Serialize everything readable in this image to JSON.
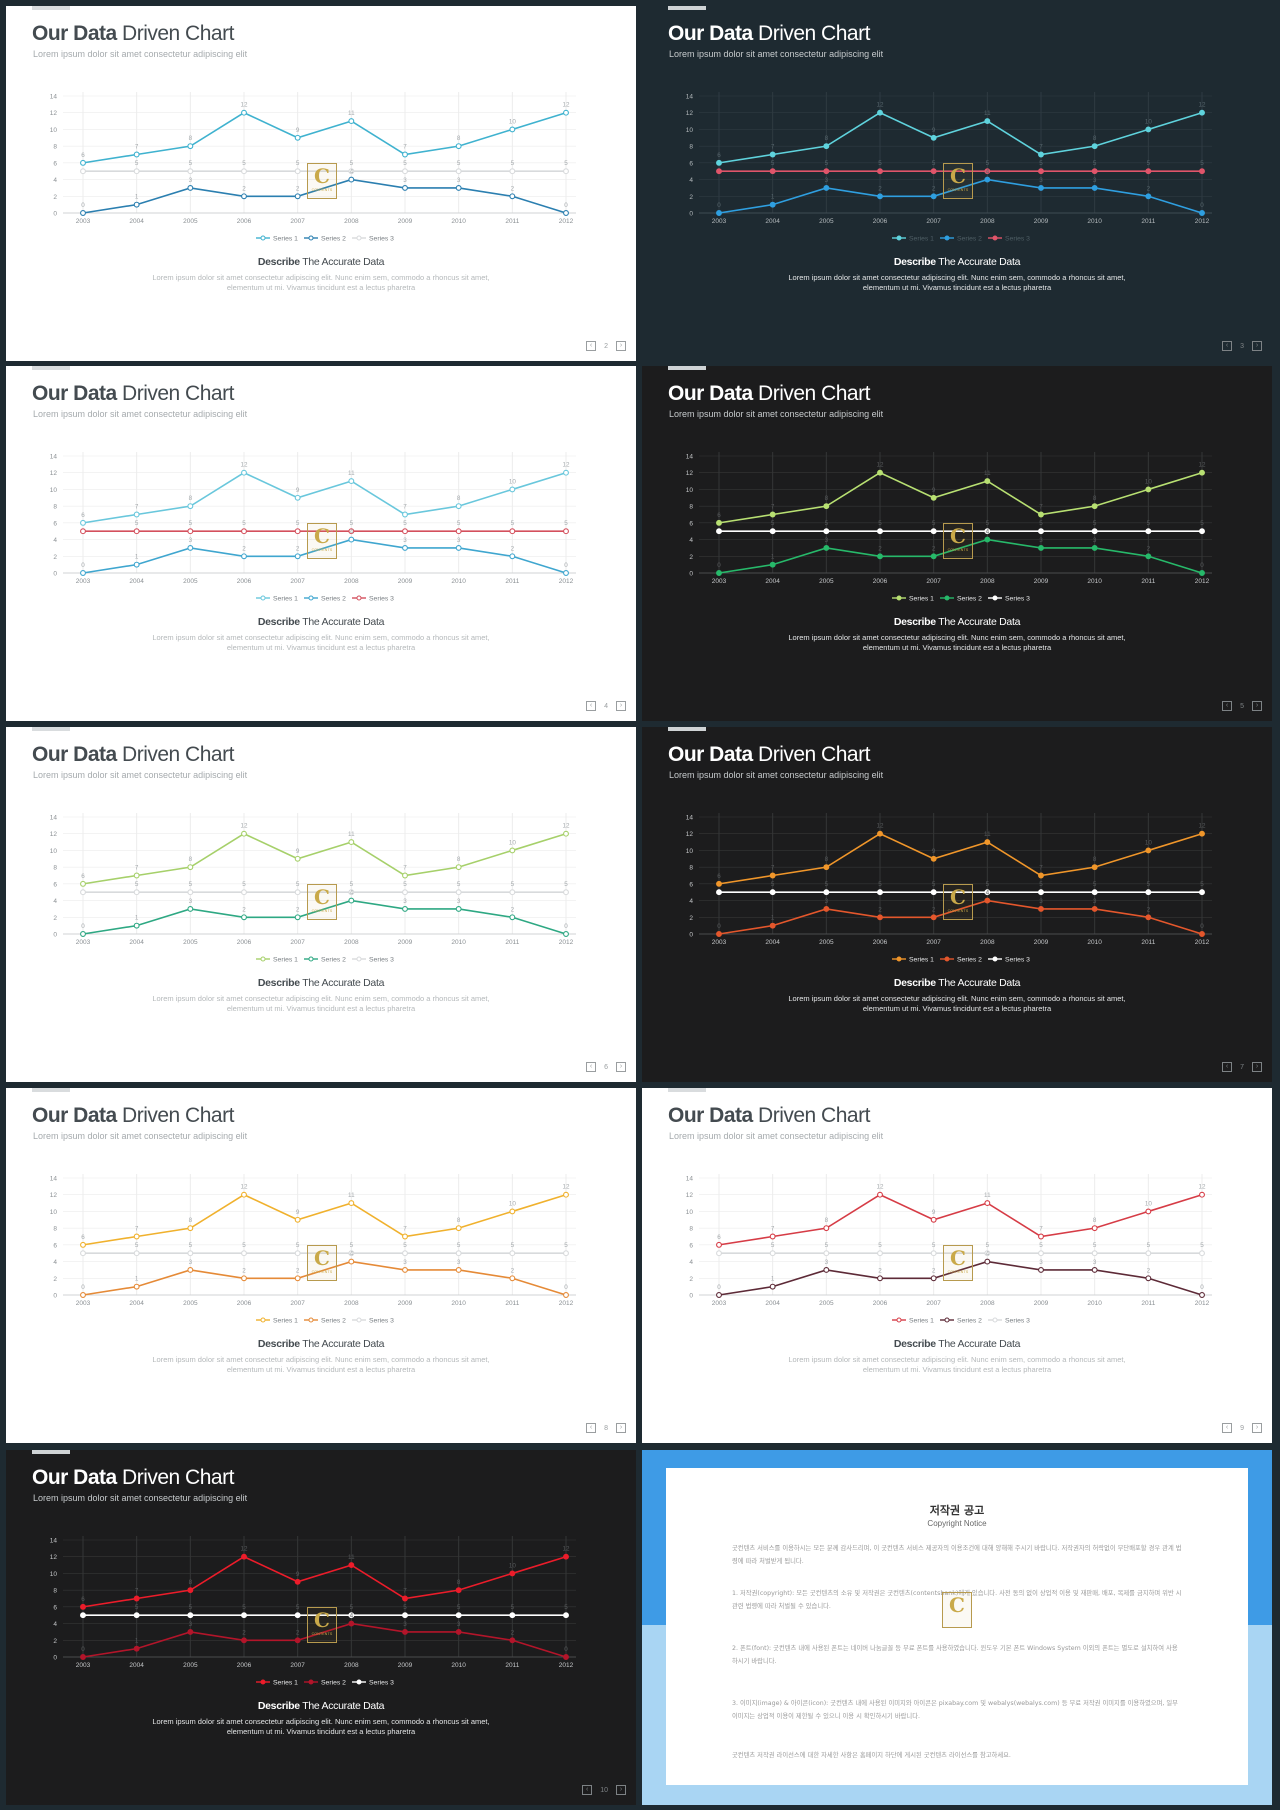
{
  "slide_common": {
    "title_bold": "Our Data",
    "title_light": "Driven Chart",
    "subtitle": "Lorem ipsum dolor sit amet consectetur adipiscing elit",
    "describe_bold": "Describe",
    "describe_light": "The Accurate Data",
    "body_text": "Lorem ipsum dolor sit amet consectetur adipiscing elit. Nunc enim sem, commodo a rhoncus sit amet, elementum ut mi. Vivamus tincidunt est a lectus pharetra",
    "logo_letter": "C",
    "logo_text": "CONTENTS"
  },
  "slides": [
    {
      "page": "2",
      "theme": "light",
      "accent": "#d9dcde",
      "colors": [
        "#3fb2cf",
        "#2b7fb0",
        "#d8dadc"
      ],
      "grid": "#ececec",
      "axis": "#d0d3d5",
      "tick": "#8a8f93",
      "label": "#a5aaad",
      "legend_text": "#7b8085"
    },
    {
      "page": "3",
      "theme": "dark",
      "bg": "#1e2a31",
      "colors": [
        "#5fd3dd",
        "#2f9fe0",
        "#e0556a"
      ],
      "grid": "#2f3b42",
      "axis": "#3f4c53",
      "tick": "#b4babd",
      "label": "#55646b",
      "legend_text": "#4f5e65"
    },
    {
      "page": "4",
      "theme": "light",
      "colors": [
        "#69c7dc",
        "#3fa6cf",
        "#d4505d"
      ],
      "grid": "#ececec",
      "axis": "#d0d3d5",
      "tick": "#8a8f93",
      "label": "#a5aaad",
      "legend_text": "#7b8085"
    },
    {
      "page": "5",
      "theme": "dark",
      "bg": "#1c1c1d",
      "colors": [
        "#b8e072",
        "#27b96a",
        "#ffffff"
      ],
      "grid": "#353637",
      "axis": "#4a4b4d",
      "tick": "#c4c6c8",
      "label": "#55585a",
      "legend_text": "#e6e7e8"
    },
    {
      "page": "6",
      "theme": "light",
      "colors": [
        "#a6d06a",
        "#2ea883",
        "#d8dadc"
      ],
      "grid": "#ececec",
      "axis": "#d0d3d5",
      "tick": "#8a8f93",
      "label": "#a5aaad",
      "legend_text": "#7b8085"
    },
    {
      "page": "7",
      "theme": "dark",
      "bg": "#1c1c1d",
      "colors": [
        "#f0962a",
        "#e4572c",
        "#ffffff"
      ],
      "grid": "#353637",
      "axis": "#4a4b4d",
      "tick": "#c4c6c8",
      "label": "#55585a",
      "legend_text": "#e6e7e8"
    },
    {
      "page": "8",
      "theme": "light",
      "colors": [
        "#f0b12d",
        "#e58a37",
        "#d8dadc"
      ],
      "grid": "#ececec",
      "axis": "#d0d3d5",
      "tick": "#8a8f93",
      "label": "#a5aaad",
      "legend_text": "#7b8085"
    },
    {
      "page": "9",
      "theme": "light",
      "colors": [
        "#d63c46",
        "#5d2a37",
        "#d8dadc"
      ],
      "grid": "#ececec",
      "axis": "#d0d3d5",
      "tick": "#8a8f93",
      "label": "#a5aaad",
      "legend_text": "#7b8085"
    },
    {
      "page": "10",
      "theme": "dark",
      "bg": "#1c1c1d",
      "colors": [
        "#ec1c2a",
        "#b3152a",
        "#ffffff"
      ],
      "grid": "#353637",
      "axis": "#4a4b4d",
      "tick": "#c4c6c8",
      "label": "#55585a",
      "legend_text": "#e6e7e8"
    }
  ],
  "chart_data": {
    "type": "line",
    "x": [
      "2003",
      "2004",
      "2005",
      "2006",
      "2007",
      "2008",
      "2009",
      "2010",
      "2011",
      "2012"
    ],
    "ylim": [
      0,
      14
    ],
    "yticks": [
      "0",
      "2",
      "4",
      "6",
      "8",
      "10",
      "12",
      "14"
    ],
    "grid": true,
    "legend_position": "bottom-center",
    "series": [
      {
        "name": "Series 1",
        "values": [
          6,
          7,
          8,
          12,
          9,
          11,
          7,
          8,
          10,
          12
        ]
      },
      {
        "name": "Series 2",
        "values": [
          0,
          1,
          3,
          2,
          2,
          4,
          3,
          3,
          2,
          0
        ]
      },
      {
        "name": "Series 3",
        "values": [
          5,
          5,
          5,
          5,
          5,
          5,
          5,
          5,
          5,
          5
        ]
      }
    ]
  },
  "copyright": {
    "title": "저작권 공고",
    "subtitle": "Copyright Notice",
    "intro": "굿컨텐츠 서비스를 이용하시는 모든 분께 감사드리며, 이 굿컨텐츠 서비스 제공자의 이용조건에 대해 양해해 주시기 바랍니다. 저작권자의 허락없이 무단배포할 경우 관계 법령에 따라 처벌받게 됩니다.",
    "p1": "1. 저작권(copyright): 모든 굿컨텐츠의 소유 및 저작권은 굿컨텐츠(contentsbank)에게 있습니다. 사전 동의 없이 상업적 이용 및 재판매, 배포, 복제를 금지하며 위반 시 관련 법령에 따라 처벌될 수 있습니다.",
    "p2": "2. 폰트(font): 굿컨텐츠 내에 사용된 폰트는 네이버 나눔글꼴 등 무료 폰트를 사용하였습니다. 윈도우 기본 폰트 Windows System 이외의 폰트는 별도로 설치하여 사용하시기 바랍니다.",
    "p3": "3. 이미지(image) & 아이콘(icon): 굿컨텐츠 내에 사용된 이미지와 아이콘은 pixabay.com 및 webalys(webalys.com) 등 무료 저작권 이미지를 이용하였으며, 일부 이미지는 상업적 이용이 제한될 수 있으니 이용 시 확인하시기 바랍니다.",
    "outro": "굿컨텐츠 저작권 라이선스에 대한 자세한 사항은 홈페이지 하단에 게시된 굿컨텐츠 라이선스를 참고하세요."
  }
}
